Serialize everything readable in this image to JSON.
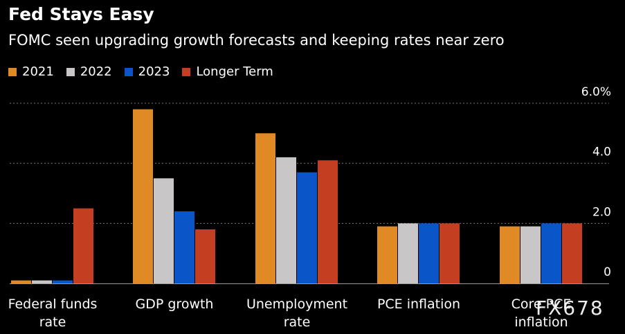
{
  "chart_data": {
    "type": "bar",
    "title": "Fed Stays Easy",
    "subtitle": "FOMC seen upgrading growth forecasts and keeping rates near zero",
    "categories": [
      [
        "Federal funds",
        "rate"
      ],
      [
        "GDP growth"
      ],
      [
        "Unemployment",
        "rate"
      ],
      [
        "PCE inflation"
      ],
      [
        "Core PCE",
        "inflation"
      ]
    ],
    "series": [
      {
        "name": "2021",
        "color": "#e08a26",
        "values": [
          0.1,
          5.8,
          5.0,
          1.9,
          1.9
        ]
      },
      {
        "name": "2022",
        "color": "#c8c6c6",
        "values": [
          0.1,
          3.5,
          4.2,
          2.0,
          1.9
        ]
      },
      {
        "name": "2023",
        "color": "#0a55c8",
        "values": [
          0.1,
          2.4,
          3.7,
          2.0,
          2.0
        ]
      },
      {
        "name": "Longer Term",
        "color": "#c43e21",
        "values": [
          2.5,
          1.8,
          4.1,
          2.0,
          2.0
        ]
      }
    ],
    "ylim": [
      0,
      6.0
    ],
    "yticks": [
      {
        "value": 0,
        "label": "0"
      },
      {
        "value": 2,
        "label": "2.0"
      },
      {
        "value": 4,
        "label": "4.0"
      },
      {
        "value": 6,
        "label": "6.0%"
      }
    ],
    "grid": true,
    "legend": "top-left",
    "xlabel": "",
    "ylabel": ""
  },
  "watermark": "FX678"
}
